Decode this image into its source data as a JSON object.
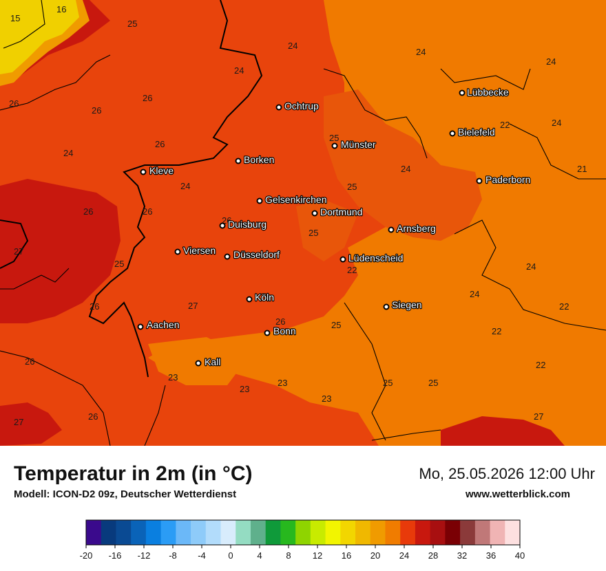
{
  "header": {
    "title": "Temperatur in 2m (in °C)",
    "model": "Modell: ICON-D2 09z, Deutscher Wetterdienst",
    "datetime": "Mo, 25.05.2026 12:00 Uhr",
    "website": "www.wetterblick.com"
  },
  "cities": [
    {
      "name": "Lübbecke"
    },
    {
      "name": "Ochtrup"
    },
    {
      "name": "Bielefeld"
    },
    {
      "name": "Münster"
    },
    {
      "name": "Borken"
    },
    {
      "name": "Kleve"
    },
    {
      "name": "Paderborn"
    },
    {
      "name": "Gelsenkirchen"
    },
    {
      "name": "Dortmund"
    },
    {
      "name": "Duisburg"
    },
    {
      "name": "Arnsberg"
    },
    {
      "name": "Viersen"
    },
    {
      "name": "Düsseldorf"
    },
    {
      "name": "Lüdenscheid"
    },
    {
      "name": "Köln"
    },
    {
      "name": "Siegen"
    },
    {
      "name": "Aachen"
    },
    {
      "name": "Bonn"
    },
    {
      "name": "Kall"
    }
  ],
  "value_labels": [
    "15",
    "16",
    "25",
    "24",
    "24",
    "24",
    "24",
    "26",
    "26",
    "26",
    "24",
    "26",
    "22",
    "24",
    "25",
    "24",
    "21",
    "24",
    "25",
    "26",
    "26",
    "25",
    "26",
    "27",
    "25",
    "24",
    "26",
    "27",
    "26",
    "22",
    "24",
    "25",
    "22",
    "22",
    "26",
    "23",
    "23",
    "23",
    "23",
    "25",
    "25",
    "22",
    "27",
    "27",
    "26"
  ],
  "legend": {
    "ticks": [
      "-20",
      "-16",
      "-12",
      "-8",
      "-4",
      "0",
      "4",
      "8",
      "12",
      "16",
      "20",
      "24",
      "28",
      "32",
      "36",
      "40"
    ],
    "colors": [
      "#3a0a8c",
      "#083a7d",
      "#0a4a93",
      "#0a63b8",
      "#0a7fe0",
      "#2b9cf5",
      "#6bb8f8",
      "#8ecbf9",
      "#b2dcfb",
      "#d8ecfc",
      "#94dcc2",
      "#5fb08c",
      "#0f9a3a",
      "#27b81e",
      "#8fd400",
      "#c8eb00",
      "#f2f500",
      "#f2d600",
      "#f0b800",
      "#f09b00",
      "#f07c00",
      "#e83a0a",
      "#c8180e",
      "#a80f10",
      "#7a0004",
      "#8b3a3a",
      "#c07878",
      "#f0b4b4",
      "#fde0e0"
    ]
  },
  "colors": {
    "t21_22": "#f07c00",
    "t23_25": "#e8560a",
    "t26_28": "#c8180e",
    "t15": "#f0d000",
    "t16": "#f09b00"
  }
}
